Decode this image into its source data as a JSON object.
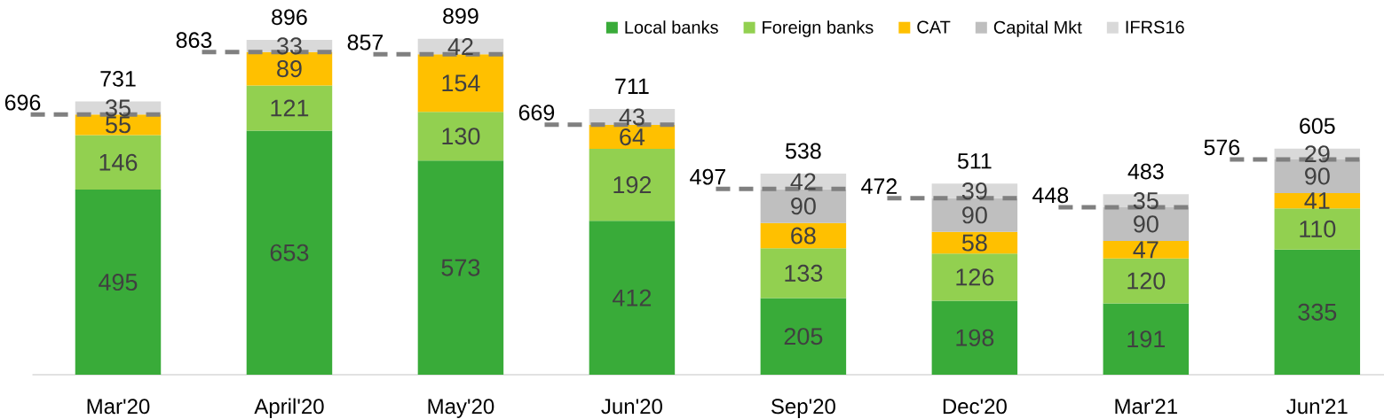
{
  "chart_data": {
    "type": "bar",
    "stacked": true,
    "data_labels": true,
    "legend": "top right",
    "categories": [
      "Mar'20",
      "April'20",
      "May'20",
      "Jun'20",
      "Sep'20",
      "Dec'20",
      "Mar'21",
      "Jun'21"
    ],
    "series": [
      {
        "name": "Local banks",
        "color": "#39ab39",
        "values": [
          495,
          653,
          573,
          412,
          205,
          198,
          191,
          335
        ]
      },
      {
        "name": "Foreign banks",
        "color": "#92d050",
        "values": [
          146,
          121,
          130,
          192,
          133,
          126,
          120,
          110
        ]
      },
      {
        "name": "CAT",
        "color": "#ffc000",
        "values": [
          55,
          89,
          154,
          64,
          68,
          58,
          47,
          41
        ]
      },
      {
        "name": "Capital Mkt",
        "color": "#bfbfbf",
        "values": [
          null,
          null,
          null,
          null,
          90,
          90,
          90,
          90
        ]
      },
      {
        "name": "IFRS16",
        "color": "#d9d9d9",
        "values": [
          35,
          33,
          42,
          43,
          42,
          39,
          35,
          29
        ]
      }
    ],
    "totals": [
      "731",
      "896",
      "899",
      "711",
      "538",
      "511",
      "483",
      "605"
    ],
    "ref_lines": [
      {
        "axis": "y",
        "value": 696,
        "label": "696",
        "color": "#808080",
        "line_style": "dashed"
      },
      {
        "axis": "y",
        "value": 863,
        "label": "863",
        "color": "#808080",
        "line_style": "dashed"
      },
      {
        "axis": "y",
        "value": 857,
        "label": "857",
        "color": "#808080",
        "line_style": "dashed"
      },
      {
        "axis": "y",
        "value": 669,
        "label": "669",
        "color": "#808080",
        "line_style": "dashed"
      },
      {
        "axis": "y",
        "value": 497,
        "label": "497",
        "color": "#808080",
        "line_style": "dashed"
      },
      {
        "axis": "y",
        "value": 472,
        "label": "472",
        "color": "#808080",
        "line_style": "dashed"
      },
      {
        "axis": "y",
        "value": 448,
        "label": "448",
        "color": "#808080",
        "line_style": "dashed"
      },
      {
        "axis": "y",
        "value": 576,
        "label": "576",
        "color": "#808080",
        "line_style": "dashed"
      }
    ]
  }
}
